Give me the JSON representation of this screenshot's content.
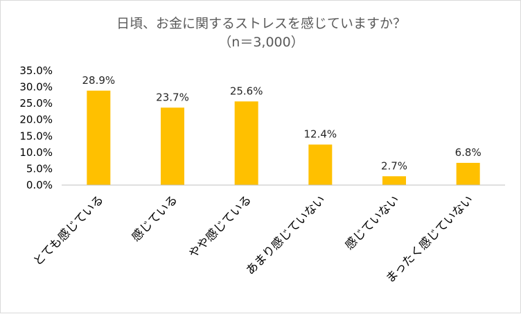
{
  "chart_data": {
    "type": "bar",
    "title": "日頃、お金に関するストレスを感じていますか？",
    "subtitle": "（n＝3,000）",
    "categories": [
      "とても感じている",
      "感じている",
      "やや感じている",
      "あまり感じていない",
      "感じていない",
      "まったく感じていない"
    ],
    "values": [
      28.9,
      23.7,
      25.6,
      12.4,
      2.7,
      6.8
    ],
    "data_labels": [
      "28.9%",
      "23.7%",
      "25.6%",
      "12.4%",
      "2.7%",
      "6.8%"
    ],
    "yticks": [
      "0.0%",
      "5.0%",
      "10.0%",
      "15.0%",
      "20.0%",
      "25.0%",
      "30.0%",
      "35.0%"
    ],
    "ylim": [
      0,
      35
    ],
    "xlabel": "",
    "ylabel": "",
    "grid": false,
    "legend": "none",
    "bar_color": "#FFC000",
    "axis_color": "#BFBFBF"
  }
}
